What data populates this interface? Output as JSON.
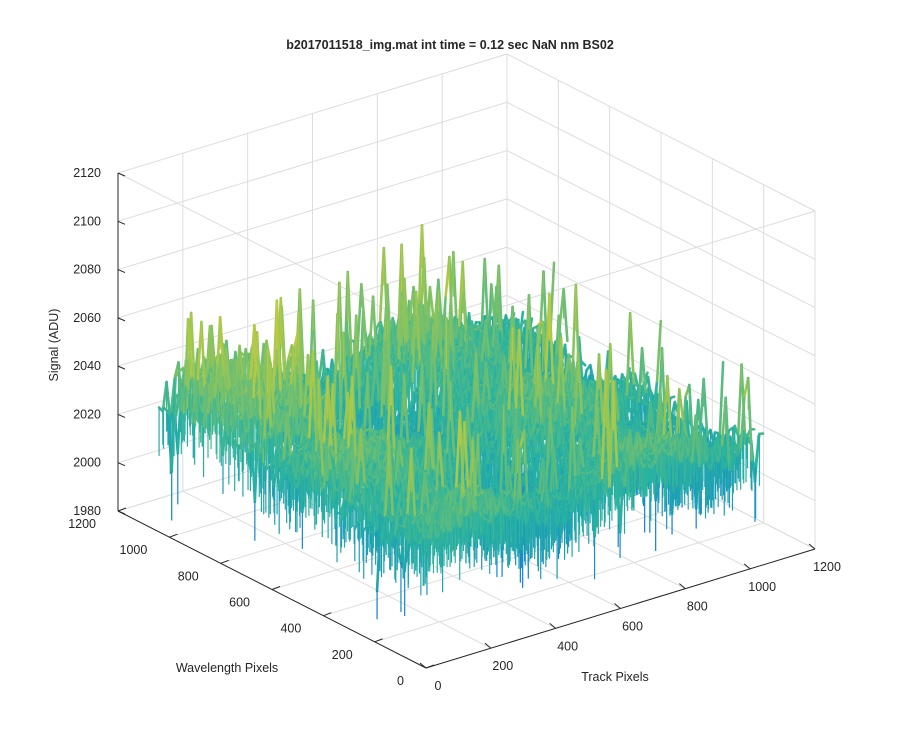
{
  "chart_data": {
    "type": "surface",
    "title": "b2017011518_img.mat int time = 0.12 sec  NaN nm BS02",
    "xlabel": "Track Pixels",
    "ylabel": "Wavelength Pixels",
    "zlabel": "Signal (ADU)",
    "xlim": [
      0,
      1200
    ],
    "ylim": [
      0,
      1200
    ],
    "zlim": [
      1980,
      2120
    ],
    "x_ticks": [
      "0",
      "200",
      "400",
      "600",
      "800",
      "1000",
      "1200"
    ],
    "y_ticks": [
      "0",
      "200",
      "400",
      "600",
      "800",
      "1000",
      "1200"
    ],
    "z_ticks": [
      "1980",
      "2000",
      "2020",
      "2040",
      "2060",
      "2080",
      "2100",
      "2120"
    ],
    "grid": true,
    "colormap": "parula",
    "signal_baseline": 2030,
    "signal_range_visible": [
      1995,
      2105
    ],
    "colors": {
      "low": "#0b7fd4",
      "mid": "#2ab3a0",
      "high_mid": "#a8c84a",
      "high": "#f7c93a"
    }
  }
}
